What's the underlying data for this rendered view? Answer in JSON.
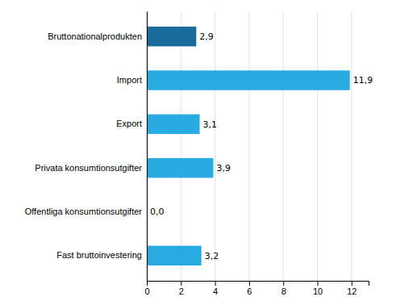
{
  "chart_data": {
    "type": "bar",
    "orientation": "horizontal",
    "categories": [
      "Fast bruttoinvestering",
      "Offentliga konsumtionsutgifter",
      "Privata konsumtionsutgifter",
      "Export",
      "Import",
      "Bruttonationalprodukten"
    ],
    "values": [
      3.2,
      0.0,
      3.9,
      3.1,
      11.9,
      2.9
    ],
    "value_labels": [
      "3,2",
      "0,0",
      "3,9",
      "3,1",
      "11,9",
      "2,9"
    ],
    "colors": [
      "#29ABE2",
      "#29ABE2",
      "#29ABE2",
      "#29ABE2",
      "#29ABE2",
      "#1A6B9A"
    ],
    "xlim": [
      0,
      13
    ],
    "xticks": [
      0,
      2,
      4,
      6,
      8,
      10,
      12
    ],
    "grid": true,
    "data_labels": true
  }
}
